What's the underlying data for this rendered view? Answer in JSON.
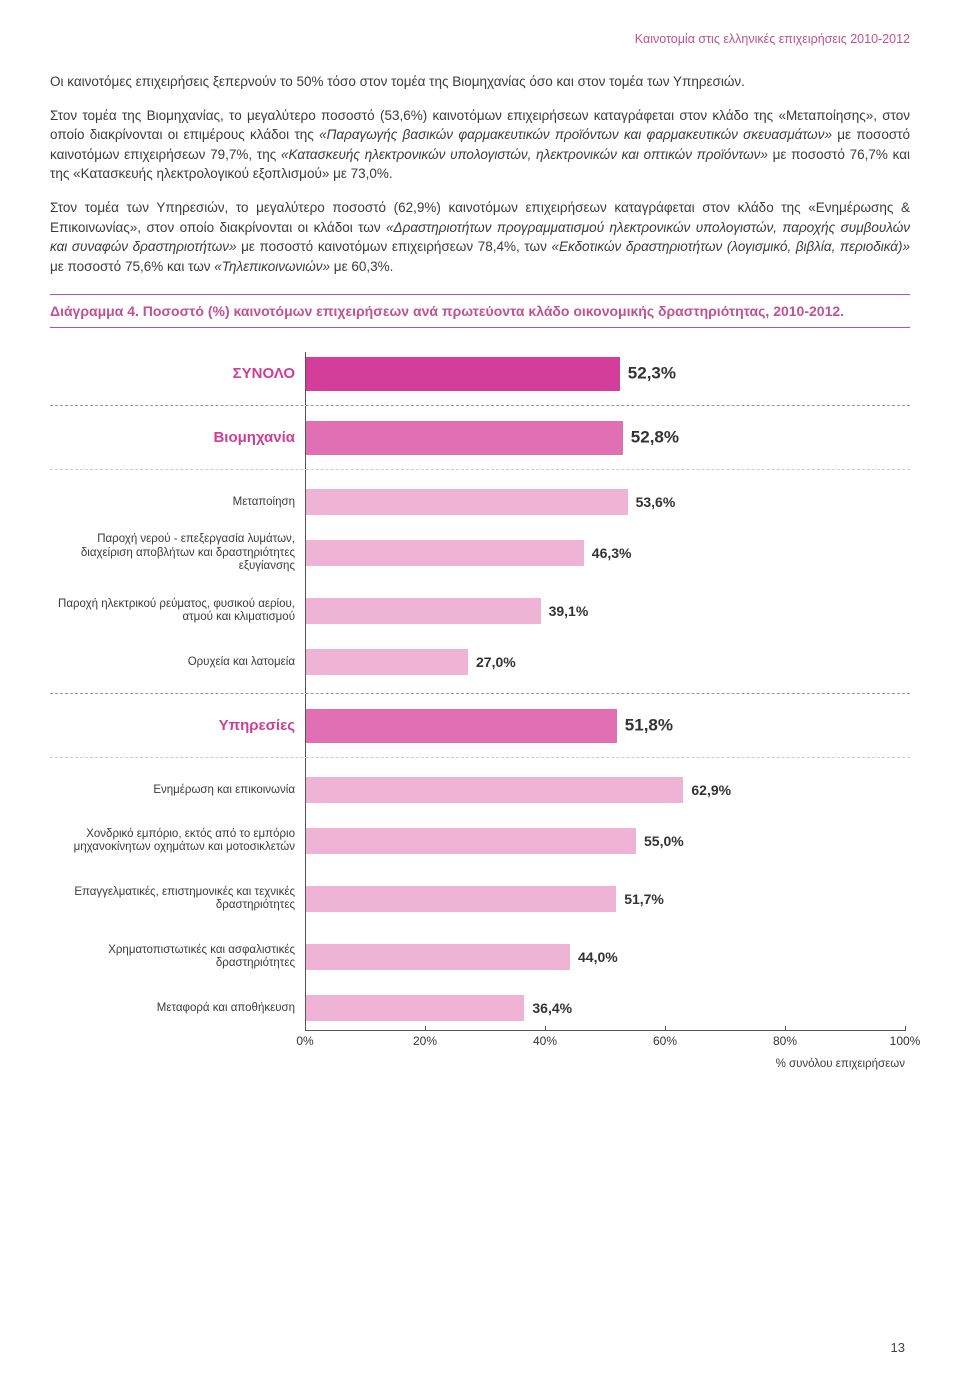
{
  "header": "Καινοτομία στις ελληνικές επιχειρήσεις 2010-2012",
  "paragraphs": {
    "p1": "Οι καινοτόμες επιχειρήσεις ξεπερνούν το 50% τόσο στον τομέα της Βιομηχανίας όσο και στον τομέα των Υπηρεσιών.",
    "p2a": "Στον τομέα της Βιομηχανίας, το μεγαλύτερο ποσοστό (53,6%) καινοτόμων επιχειρήσεων καταγράφεται στον κλάδο της «Μεταποίησης», στον οποίο διακρίνονται οι επιμέρους κλάδοι της ",
    "p2i1": "«Παραγωγής βασικών φαρμακευτικών προϊόντων και φαρμακευτικών σκευασμάτων»",
    "p2b": " με ποσοστό καινοτόμων επιχειρήσεων 79,7%, της ",
    "p2i2": "«Κατασκευής ηλεκτρονικών υπολογιστών, ηλεκτρονικών και οπτικών προϊόντων»",
    "p2c": " με ποσοστό 76,7% και της «Κατασκευής ηλεκτρολογικού εξοπλισμού» με 73,0%.",
    "p3a": "Στον τομέα των Υπηρεσιών, το μεγαλύτερο ποσοστό (62,9%) καινοτόμων επιχειρήσεων καταγράφεται στον κλάδο της «Ενημέρωσης & Επικοινωνίας», στον οποίο διακρίνονται οι κλάδοι των ",
    "p3i1": "«Δραστηριοτήτων προγραμματισμού ηλεκτρονικών υπολογιστών, παροχής συμβουλών και συναφών δραστηριοτήτων»",
    "p3b": " με ποσοστό καινοτόμων επιχειρήσεων 78,4%, των ",
    "p3i2": "«Εκδοτικών δραστηριοτήτων (λογισμικό, βιβλία, περιοδικά)»",
    "p3c": " με ποσοστό 75,6% και των ",
    "p3i3": "«Τηλεπικοινωνιών»",
    "p3d": " με 60,3%."
  },
  "chart": {
    "title": "Διάγραμμα 4. Ποσοστό (%) καινοτόμων επιχειρήσεων ανά πρωτεύοντα κλάδο οικονομικής δραστηριότητας, 2010-2012.",
    "xmax": 100,
    "xticks": [
      0,
      20,
      40,
      60,
      80,
      100
    ],
    "xtick_labels": [
      "0%",
      "20%",
      "40%",
      "60%",
      "80%",
      "100%"
    ],
    "xaxis_title": "% συνόλου επιχειρήσεων",
    "colors": {
      "total": "#d23e9a",
      "major": "#e06fb4",
      "sub": "#efb3d6",
      "label_major": "#cf3e96"
    },
    "rows": [
      {
        "key": "total",
        "label": "ΣΥΝΟΛΟ",
        "value": 52.3,
        "value_label": "52,3%",
        "type": "major",
        "color": "#d23e9a",
        "sep": "strong"
      },
      {
        "key": "ind",
        "label": "Βιομηχανία",
        "value": 52.8,
        "value_label": "52,8%",
        "type": "major",
        "color": "#e06fb4",
        "sep": "light"
      },
      {
        "key": "ind1",
        "label": "Μεταποίηση",
        "value": 53.6,
        "value_label": "53,6%",
        "type": "sub",
        "color": "#efb3d6"
      },
      {
        "key": "ind2",
        "label": "Παροχή νερού - επεξεργασία λυμάτων, διαχείριση αποβλήτων και δραστηριότητες εξυγίανσης",
        "value": 46.3,
        "value_label": "46,3%",
        "type": "sub",
        "color": "#efb3d6"
      },
      {
        "key": "ind3",
        "label": "Παροχή ηλεκτρικού ρεύματος, φυσικού αερίου, ατμού και κλιματισμού",
        "value": 39.1,
        "value_label": "39,1%",
        "type": "sub",
        "color": "#efb3d6"
      },
      {
        "key": "ind4",
        "label": "Ορυχεία και λατομεία",
        "value": 27.0,
        "value_label": "27,0%",
        "type": "sub",
        "color": "#efb3d6",
        "sep": "strong"
      },
      {
        "key": "serv",
        "label": "Υπηρεσίες",
        "value": 51.8,
        "value_label": "51,8%",
        "type": "major",
        "color": "#e06fb4",
        "sep": "light"
      },
      {
        "key": "s1",
        "label": "Ενημέρωση και επικοινωνία",
        "value": 62.9,
        "value_label": "62,9%",
        "type": "sub",
        "color": "#efb3d6"
      },
      {
        "key": "s2",
        "label": "Χονδρικό εμπόριο, εκτός από το εμπόριο μηχανοκίνητων οχημάτων και μοτοσικλετών",
        "value": 55.0,
        "value_label": "55,0%",
        "type": "sub",
        "color": "#efb3d6"
      },
      {
        "key": "s3",
        "label": "Επαγγελματικές, επιστημονικές και τεχνικές δραστηριότητες",
        "value": 51.7,
        "value_label": "51,7%",
        "type": "sub",
        "color": "#efb3d6"
      },
      {
        "key": "s4",
        "label": "Χρηματοπιστωτικές και ασφαλιστικές δραστηριότητες",
        "value": 44.0,
        "value_label": "44,0%",
        "type": "sub",
        "color": "#efb3d6"
      },
      {
        "key": "s5",
        "label": "Μεταφορά και αποθήκευση",
        "value": 36.4,
        "value_label": "36,4%",
        "type": "sub",
        "color": "#efb3d6"
      }
    ]
  },
  "page_number": "13"
}
